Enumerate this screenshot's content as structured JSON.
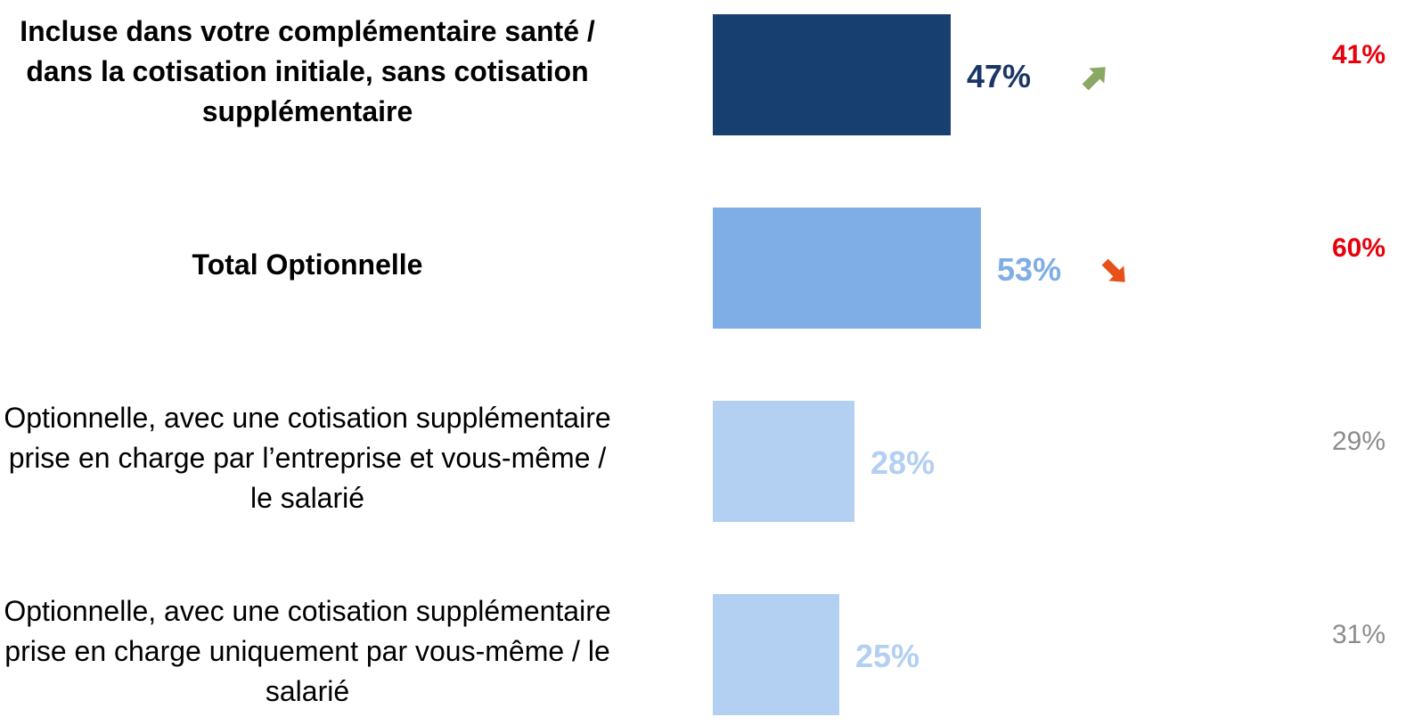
{
  "chart_data": {
    "type": "bar",
    "orientation": "horizontal",
    "categories": [
      "Incluse dans votre complémentaire santé / dans la cotisation initiale, sans cotisation supplémentaire",
      "Total Optionnelle",
      "Optionnelle, avec une cotisation supplémentaire prise en charge par l’entreprise et vous-même / le salarié",
      "Optionnelle, avec une cotisation supplémentaire prise en charge uniquement par vous-même / le salarié"
    ],
    "values": [
      47,
      53,
      28,
      25
    ],
    "value_labels": [
      "47%",
      "53%",
      "28%",
      "25%"
    ],
    "colors": [
      "#173f6f",
      "#7eaee5",
      "#b3cff1",
      "#b3cff1"
    ],
    "value_label_colors": [
      "#1a3668",
      "#7eaee5",
      "#b3cff1",
      "#b3cff1"
    ],
    "comparison_values": [
      41,
      60,
      29,
      31
    ],
    "comparison_labels": [
      "41%",
      "60%",
      "29%",
      "31%"
    ],
    "comparison_colors": [
      "#e8000b",
      "#e8000b",
      "#8c8c8c",
      "#8c8c8c"
    ]
  }
}
